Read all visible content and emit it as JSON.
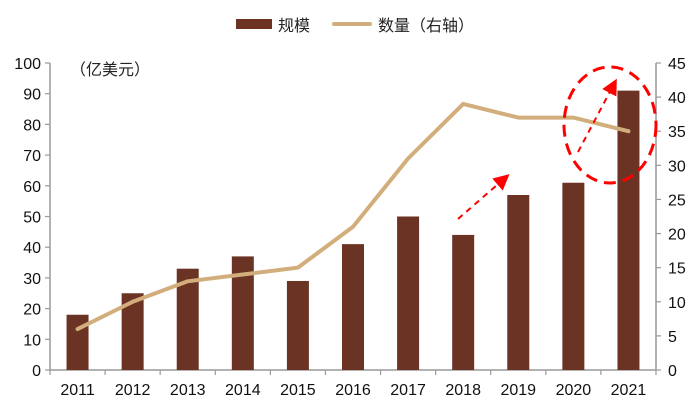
{
  "legend": {
    "bar_label": "规模",
    "line_label": "数量（右轴）"
  },
  "unit_label": "（亿美元）",
  "colors": {
    "bar": "#6b3323",
    "line": "#d2ae7c",
    "annotation": "#ff0000",
    "axis": "#999999"
  },
  "chart_data": {
    "type": "bar+line",
    "title": "",
    "categories": [
      "2011",
      "2012",
      "2013",
      "2014",
      "2015",
      "2016",
      "2017",
      "2018",
      "2019",
      "2020",
      "2021"
    ],
    "series": [
      {
        "name": "规模",
        "type": "bar",
        "axis": "left",
        "values": [
          18,
          25,
          33,
          37,
          29,
          41,
          50,
          44,
          57,
          61,
          91
        ]
      },
      {
        "name": "数量（右轴）",
        "type": "line",
        "axis": "right",
        "values": [
          6,
          10,
          13,
          14,
          15,
          21,
          31,
          39,
          37,
          37,
          35
        ]
      }
    ],
    "left_axis": {
      "label": "（亿美元）",
      "ylim": [
        0,
        100
      ],
      "ticks": [
        0,
        10,
        20,
        30,
        40,
        50,
        60,
        70,
        80,
        90,
        100
      ]
    },
    "right_axis": {
      "label": "",
      "ylim": [
        0,
        45
      ],
      "ticks": [
        0,
        5,
        10,
        15,
        20,
        25,
        30,
        35,
        40,
        45
      ]
    },
    "xlabel": "",
    "grid": false,
    "legend_position": "top",
    "annotations": [
      {
        "type": "dashed-arrow",
        "from": "2018",
        "to": "2019",
        "color": "#ff0000"
      },
      {
        "type": "dashed-arrow",
        "at": "2021",
        "color": "#ff0000"
      },
      {
        "type": "dashed-ellipse",
        "at": "2020-2021",
        "color": "#ff0000"
      }
    ]
  }
}
